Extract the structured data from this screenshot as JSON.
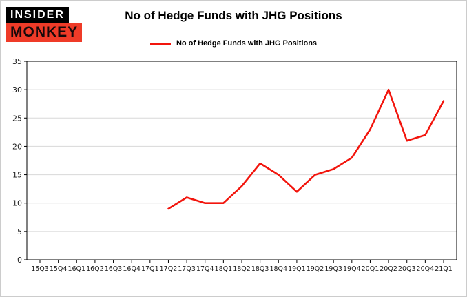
{
  "logo": {
    "top": "INSIDER",
    "bottom": "MONKEY"
  },
  "title": "No of Hedge Funds with JHG Positions",
  "legend": {
    "label": "No of Hedge Funds with JHG Positions",
    "color": "#f2150d"
  },
  "chart_data": {
    "type": "line",
    "title": "No of Hedge Funds with JHG Positions",
    "xlabel": "",
    "ylabel": "",
    "categories": [
      "15Q3",
      "15Q4",
      "16Q1",
      "16Q2",
      "16Q3",
      "16Q4",
      "17Q1",
      "17Q2",
      "17Q3",
      "17Q4",
      "18Q1",
      "18Q2",
      "18Q3",
      "18Q4",
      "19Q1",
      "19Q2",
      "19Q3",
      "19Q4",
      "20Q1",
      "20Q2",
      "20Q3",
      "20Q4",
      "21Q1"
    ],
    "series": [
      {
        "name": "No of Hedge Funds with JHG Positions",
        "color": "#f2150d",
        "values": [
          null,
          null,
          null,
          null,
          null,
          null,
          null,
          9,
          11,
          10,
          10,
          13,
          17,
          15,
          12,
          15,
          16,
          18,
          23,
          30,
          21,
          22,
          28
        ]
      }
    ],
    "ylim": [
      0,
      35
    ],
    "ytick_step": 5,
    "grid": true,
    "legend_position": "top"
  }
}
